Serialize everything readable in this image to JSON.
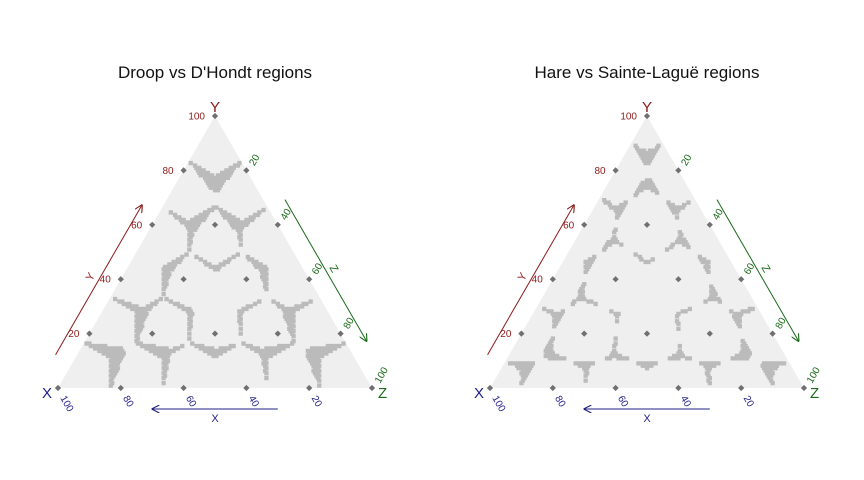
{
  "chart_data": [
    {
      "type": "ternary",
      "title": "Droop vs D'Hondt regions",
      "vertices": {
        "left": "X",
        "top": "Y",
        "right": "Z"
      },
      "axes": {
        "X": {
          "label": "X",
          "ticks": [
            100,
            80,
            60,
            40,
            20
          ],
          "color": "#1f1f8a"
        },
        "Y": {
          "label": "Y",
          "ticks": [
            20,
            40,
            60,
            80,
            100
          ],
          "color": "#8b1a1a"
        },
        "Z": {
          "label": "Z",
          "ticks": [
            20,
            40,
            60,
            80,
            100
          ],
          "color": "#1a6b1a"
        }
      },
      "triangle_fill": "#efefef",
      "region_color": "#bbbbbb",
      "grid_points": "all (X,Y,Z) in steps of 20 summing to 100",
      "region_rule": "boundary bands where D'Hondt and Droop allocations of 5 seats differ",
      "point_color": "#707070"
    },
    {
      "type": "ternary",
      "title": "Hare vs Sainte-Laguë regions",
      "vertices": {
        "left": "X",
        "top": "Y",
        "right": "Z"
      },
      "axes": {
        "X": {
          "label": "X",
          "ticks": [
            100,
            80,
            60,
            40,
            20
          ],
          "color": "#1f1f8a"
        },
        "Y": {
          "label": "Y",
          "ticks": [
            20,
            40,
            60,
            80,
            100
          ],
          "color": "#8b1a1a"
        },
        "Z": {
          "label": "Z",
          "ticks": [
            20,
            40,
            60,
            80,
            100
          ],
          "color": "#1a6b1a"
        }
      },
      "triangle_fill": "#efefef",
      "region_color": "#bbbbbb",
      "grid_points": "all (X,Y,Z) in steps of 20 summing to 100",
      "region_rule": "boundary bands where Sainte-Laguë and Hare allocations of 5 seats differ",
      "point_color": "#707070"
    }
  ]
}
